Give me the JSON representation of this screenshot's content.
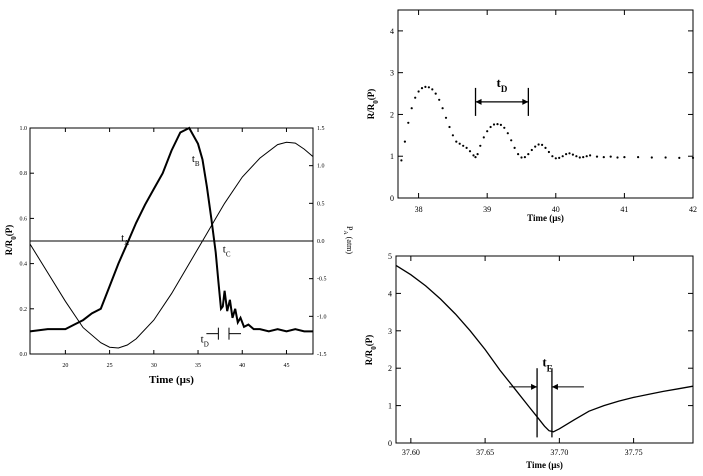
{
  "chart_data": [
    {
      "id": "left",
      "type": "line",
      "xlabel": "Time (µs)",
      "ylabel": "R/R",
      "ylabel_sub": "0",
      "ylabel_tail": "(P)",
      "y2label": "P",
      "y2label_sub": "A",
      "y2label_tail": " (atm)",
      "xlim": [
        16,
        48
      ],
      "ylim": [
        0.0,
        1.0
      ],
      "y2lim": [
        -1.5,
        1.5
      ],
      "xticks": [
        20,
        25,
        30,
        35,
        40,
        45
      ],
      "yticks": [
        0.0,
        0.2,
        0.4,
        0.6,
        0.8,
        1.0
      ],
      "ytick_labels": [
        "0.0",
        "0.2",
        "0.4",
        "0.6",
        "0.8",
        "1.0"
      ],
      "y2ticks": [
        -1.5,
        -1.0,
        -0.5,
        0.0,
        0.5,
        1.0,
        1.5
      ],
      "y2tick_labels": [
        "-1.5",
        "-1.0",
        "-0.5",
        "0.0",
        "0.5",
        "1.0",
        "1.5"
      ],
      "series": [
        {
          "name": "R/R0(P)",
          "axis": "left",
          "x": [
            16,
            18,
            20,
            21,
            22,
            23,
            24,
            25,
            26,
            27,
            28,
            29,
            30,
            31,
            32,
            33,
            34,
            35,
            35.5,
            36,
            36.5,
            37,
            37.3,
            37.6,
            37.8,
            38.0,
            38.3,
            38.6,
            38.9,
            39.2,
            39.5,
            39.8,
            40.2,
            40.7,
            41.3,
            42,
            43,
            44,
            45,
            46,
            47,
            48
          ],
          "y": [
            0.1,
            0.11,
            0.11,
            0.13,
            0.15,
            0.18,
            0.2,
            0.3,
            0.4,
            0.49,
            0.58,
            0.66,
            0.73,
            0.8,
            0.9,
            0.98,
            1.0,
            0.93,
            0.86,
            0.74,
            0.6,
            0.45,
            0.32,
            0.2,
            0.21,
            0.28,
            0.19,
            0.24,
            0.16,
            0.2,
            0.14,
            0.16,
            0.12,
            0.13,
            0.11,
            0.11,
            0.1,
            0.11,
            0.1,
            0.11,
            0.1,
            0.1
          ]
        },
        {
          "name": "PA (atm)",
          "axis": "right",
          "x": [
            16,
            18,
            20,
            22,
            24,
            25,
            26,
            27,
            28,
            30,
            32,
            34,
            36,
            37,
            38,
            40,
            42,
            44,
            45,
            46,
            47,
            48
          ],
          "y": [
            -0.04,
            -0.42,
            -0.8,
            -1.15,
            -1.35,
            -1.41,
            -1.42,
            -1.38,
            -1.3,
            -1.05,
            -0.7,
            -0.3,
            0.1,
            0.3,
            0.5,
            0.85,
            1.1,
            1.28,
            1.31,
            1.3,
            1.22,
            1.12
          ]
        },
        {
          "name": "baseline",
          "axis": "right",
          "x": [
            16,
            48
          ],
          "y": [
            0.0,
            0.0
          ]
        }
      ],
      "annotations": [
        {
          "text": "t",
          "sub": "A",
          "x": 26.3,
          "y": 0.5
        },
        {
          "text": "t",
          "sub": "B",
          "x": 34.3,
          "y": 0.85
        },
        {
          "text": "t",
          "sub": "C",
          "x": 37.8,
          "y": 0.45
        },
        {
          "text": "t",
          "sub": "D",
          "x": 35.3,
          "y": 0.05
        }
      ],
      "td_marker": {
        "x1": 37.3,
        "x2": 38.5,
        "y": 0.09
      }
    },
    {
      "id": "top-right",
      "type": "scatter",
      "xlabel": "Time (µs)",
      "ylabel": "R/R",
      "ylabel_sub": "0",
      "ylabel_tail": "(P)",
      "xlim": [
        37.7,
        42.0
      ],
      "ylim": [
        0,
        4.5
      ],
      "xticks": [
        38,
        39,
        40,
        41,
        42
      ],
      "yticks": [
        0,
        1,
        2,
        3,
        4
      ],
      "ytick_labels": [
        "0",
        "1",
        "2",
        "3",
        "4"
      ],
      "series": [
        {
          "name": "R/R0(P)",
          "x": [
            37.75,
            37.8,
            37.85,
            37.9,
            37.95,
            38.0,
            38.05,
            38.1,
            38.15,
            38.2,
            38.25,
            38.3,
            38.35,
            38.4,
            38.45,
            38.5,
            38.55,
            38.6,
            38.65,
            38.7,
            38.75,
            38.8,
            38.83,
            38.86,
            38.9,
            38.95,
            39.0,
            39.05,
            39.1,
            39.15,
            39.2,
            39.25,
            39.3,
            39.35,
            39.4,
            39.45,
            39.5,
            39.55,
            39.6,
            39.65,
            39.7,
            39.75,
            39.8,
            39.85,
            39.9,
            39.95,
            40.0,
            40.05,
            40.1,
            40.15,
            40.2,
            40.25,
            40.3,
            40.35,
            40.4,
            40.45,
            40.5,
            40.6,
            40.7,
            40.8,
            40.9,
            41.0,
            41.2,
            41.4,
            41.6,
            41.8,
            42.0
          ],
          "y": [
            0.9,
            1.35,
            1.8,
            2.15,
            2.4,
            2.55,
            2.63,
            2.66,
            2.65,
            2.6,
            2.5,
            2.35,
            2.15,
            1.92,
            1.7,
            1.5,
            1.35,
            1.3,
            1.25,
            1.2,
            1.12,
            1.02,
            0.98,
            1.05,
            1.25,
            1.45,
            1.6,
            1.7,
            1.76,
            1.77,
            1.75,
            1.68,
            1.55,
            1.38,
            1.2,
            1.05,
            0.97,
            0.98,
            1.05,
            1.15,
            1.23,
            1.28,
            1.27,
            1.2,
            1.1,
            1.0,
            0.95,
            0.96,
            1.0,
            1.05,
            1.07,
            1.04,
            1.0,
            0.97,
            0.98,
            1.0,
            1.02,
            0.99,
            0.98,
            0.99,
            0.97,
            0.98,
            0.98,
            0.97,
            0.97,
            0.96,
            0.96
          ]
        }
      ],
      "td_marker": {
        "x1": 38.83,
        "x2": 39.6,
        "y": 2.3,
        "label": "t",
        "label_sub": "D"
      }
    },
    {
      "id": "bottom-right",
      "type": "line",
      "xlabel": "Time (µs)",
      "ylabel": "R/R",
      "ylabel_sub": "0",
      "ylabel_tail": "(P)",
      "xlim": [
        37.59,
        37.79
      ],
      "ylim": [
        0,
        5
      ],
      "xticks": [
        37.6,
        37.65,
        37.7,
        37.75
      ],
      "xtick_labels": [
        "37.60",
        "37.65",
        "37.70",
        "37.75"
      ],
      "yticks": [
        0,
        1,
        2,
        3,
        4,
        5
      ],
      "ytick_labels": [
        "0",
        "1",
        "2",
        "3",
        "4",
        "5"
      ],
      "series": [
        {
          "name": "R/R0(P)",
          "x": [
            37.59,
            37.6,
            37.61,
            37.62,
            37.63,
            37.64,
            37.65,
            37.66,
            37.67,
            37.68,
            37.685,
            37.69,
            37.693,
            37.696,
            37.7,
            37.71,
            37.72,
            37.73,
            37.74,
            37.75,
            37.76,
            37.77,
            37.78,
            37.79
          ],
          "y": [
            4.75,
            4.5,
            4.2,
            3.85,
            3.45,
            3.0,
            2.5,
            1.95,
            1.45,
            0.95,
            0.7,
            0.45,
            0.33,
            0.3,
            0.38,
            0.62,
            0.85,
            1.0,
            1.12,
            1.22,
            1.3,
            1.38,
            1.45,
            1.52
          ]
        }
      ],
      "te_marker": {
        "x1": 37.685,
        "x2": 37.695,
        "y": 1.5,
        "label": "t",
        "label_sub": "E"
      }
    }
  ]
}
